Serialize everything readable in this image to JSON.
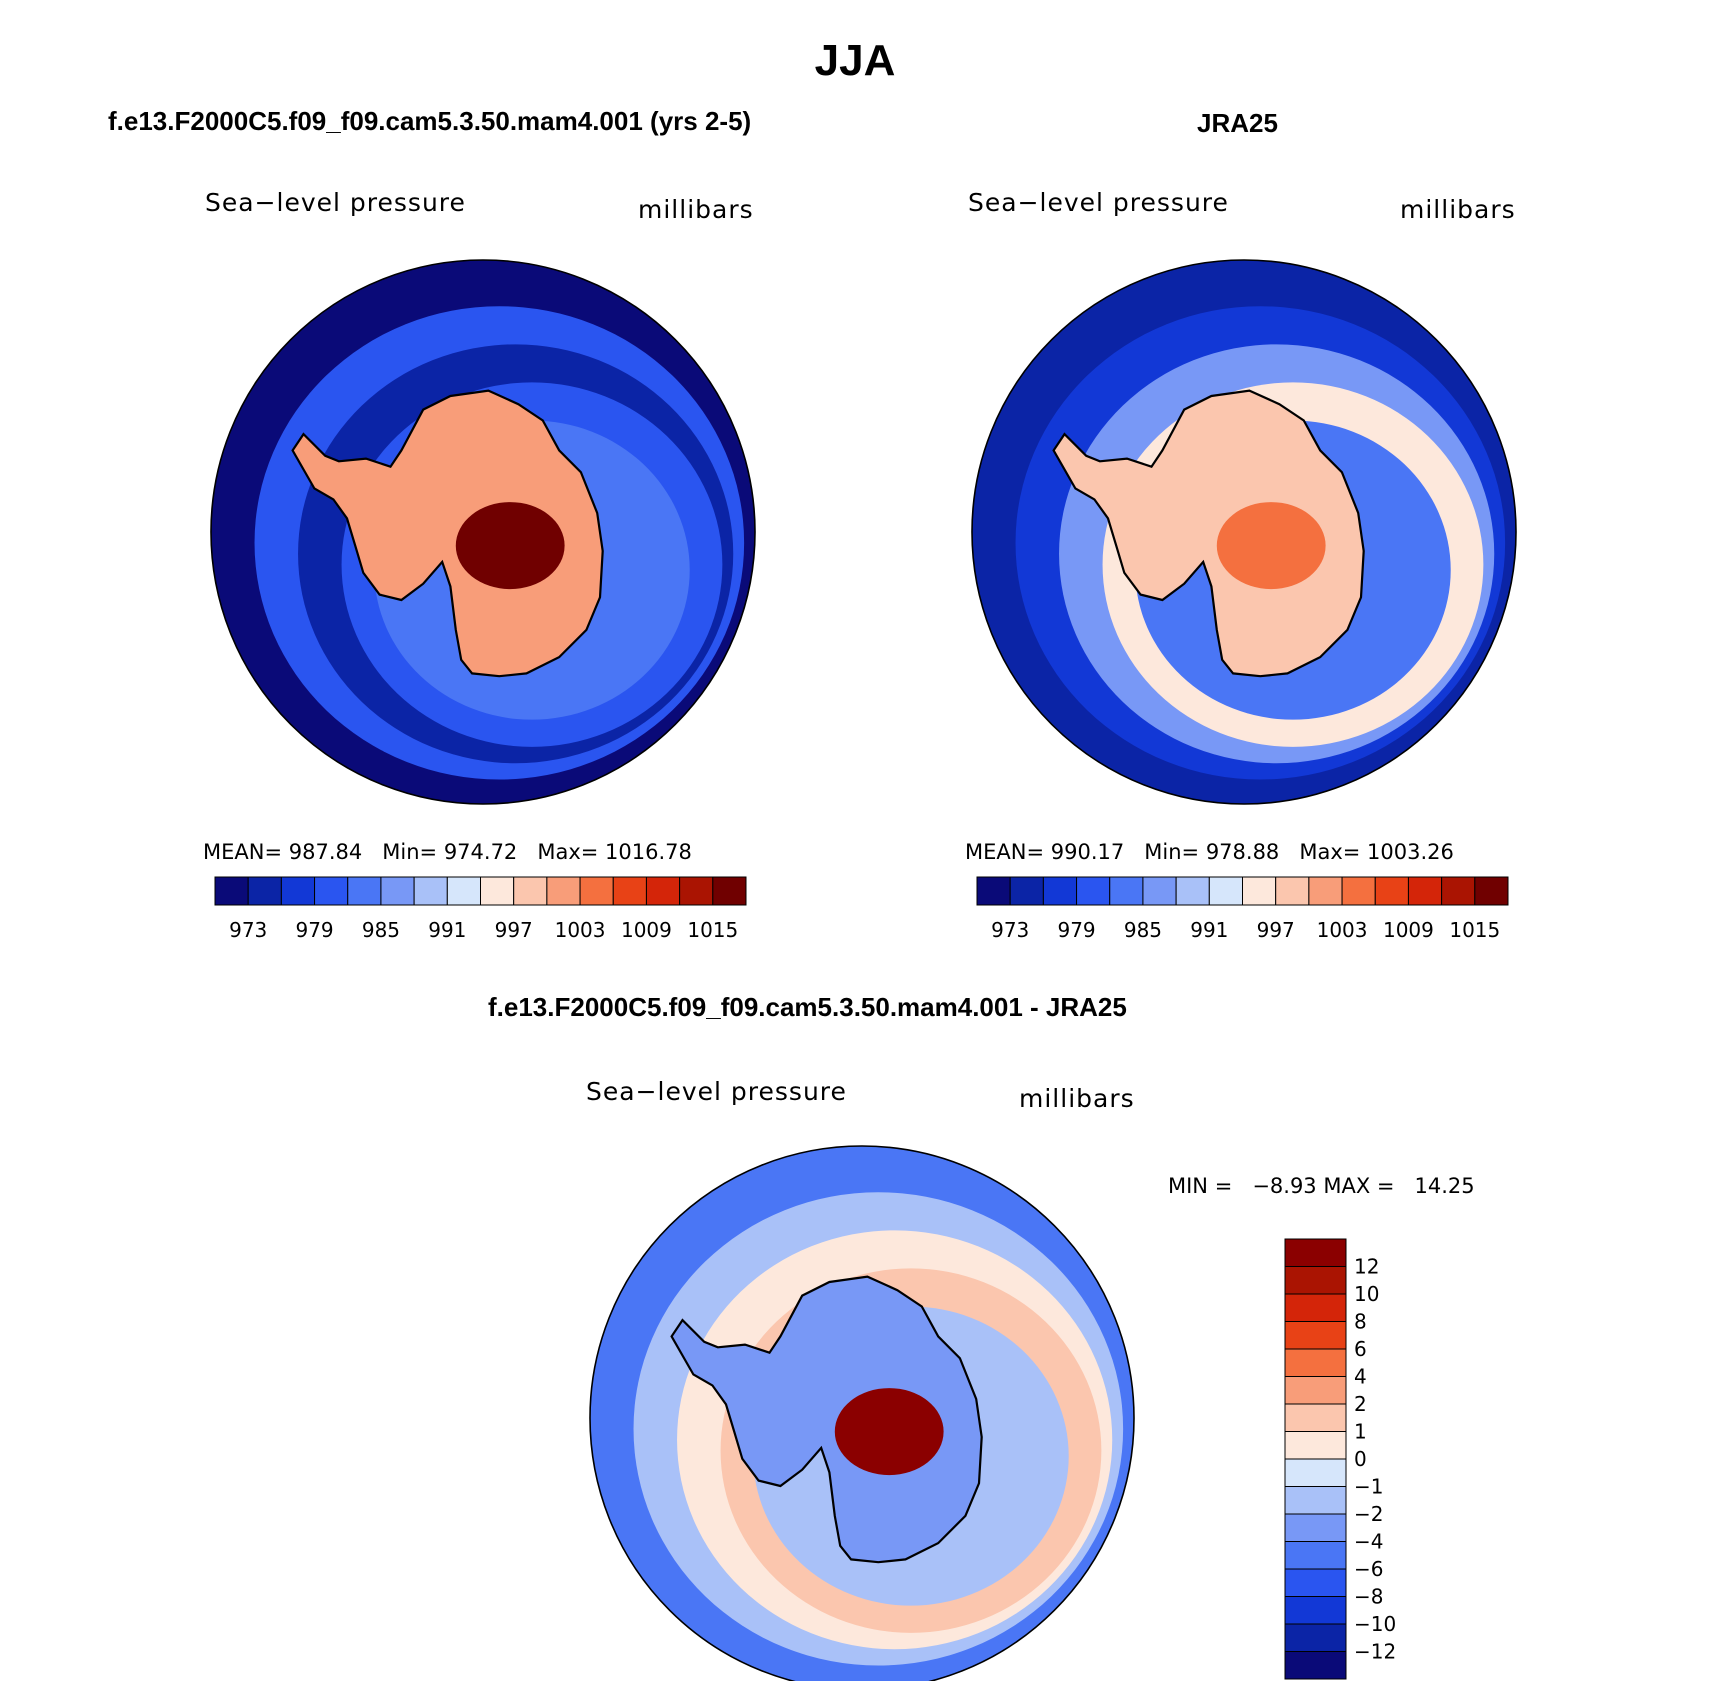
{
  "title": "JJA",
  "panels": [
    {
      "heading": "f.e13.F2000C5.f09_f09.cam5.3.50.mam4.001 (yrs 2-5)",
      "variable": "Sea−level pressure",
      "units": "millibars",
      "stats": {
        "mean_label": "MEAN=",
        "mean": "987.84",
        "min_label": "Min=",
        "min": "974.72",
        "max_label": "Max=",
        "max": "1016.78"
      }
    },
    {
      "heading": "JRA25",
      "variable": "Sea−level pressure",
      "units": "millibars",
      "stats": {
        "mean_label": "MEAN=",
        "mean": "990.17",
        "min_label": "Min=",
        "min": "978.88",
        "max_label": "Max=",
        "max": "1003.26"
      }
    },
    {
      "heading": "f.e13.F2000C5.f09_f09.cam5.3.50.mam4.001 - JRA25",
      "variable": "Sea−level pressure",
      "units": "millibars",
      "minmax": "MIN =   −8.93 MAX =   14.25"
    }
  ],
  "colorbar_abs": {
    "colors": [
      "#0a0a78",
      "#0b24a6",
      "#1238d6",
      "#2a55f0",
      "#4a76f5",
      "#7898f6",
      "#a9c1f8",
      "#d6e6fb",
      "#fde8dc",
      "#fbc6ae",
      "#f89d79",
      "#f4703f",
      "#e84216",
      "#d42509",
      "#aa1402",
      "#700000"
    ],
    "labels": [
      "973",
      "979",
      "985",
      "991",
      "997",
      "1003",
      "1009",
      "1015"
    ]
  },
  "colorbar_diff": {
    "colors": [
      "#0a0a78",
      "#0b24a6",
      "#1238d6",
      "#2a55f0",
      "#4a76f5",
      "#7898f6",
      "#a9c1f8",
      "#d6e6fb",
      "#fde8dc",
      "#fbc6ae",
      "#f89d79",
      "#f4703f",
      "#e84216",
      "#d42509",
      "#aa1402",
      "#8b0000"
    ],
    "labels": [
      "−12",
      "−10",
      "−8",
      "−6",
      "−4",
      "−2",
      "−1",
      "0",
      "1",
      "2",
      "4",
      "6",
      "8",
      "10",
      "12"
    ]
  },
  "map_field": {
    "model": {
      "polar": 4,
      "ring": [
        0,
        3,
        1,
        3
      ],
      "land_low": 10,
      "land_high": 15
    },
    "obs": {
      "polar": 4,
      "ring": [
        1,
        2,
        5,
        8
      ],
      "land_low": 9,
      "land_high": 11
    },
    "diff": {
      "polar": 6,
      "ring": [
        4,
        6,
        8,
        9
      ],
      "land_low": 5,
      "land_high": 15
    }
  }
}
